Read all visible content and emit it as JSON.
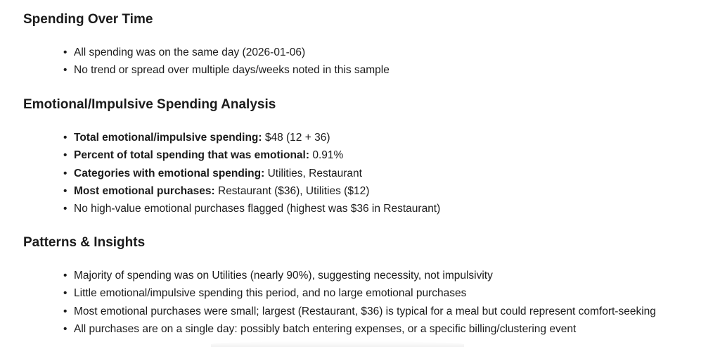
{
  "sections": [
    {
      "heading": "Spending Over Time",
      "items": [
        {
          "label": "",
          "text": "All spending was on the same day (2026-01-06)"
        },
        {
          "label": "",
          "text": "No trend or spread over multiple days/weeks noted in this sample"
        }
      ]
    },
    {
      "heading": "Emotional/Impulsive Spending Analysis",
      "items": [
        {
          "label": "Total emotional/impulsive spending:",
          "text": " $48 (12 + 36)"
        },
        {
          "label": "Percent of total spending that was emotional:",
          "text": " 0.91%"
        },
        {
          "label": "Categories with emotional spending:",
          "text": " Utilities, Restaurant"
        },
        {
          "label": "Most emotional purchases:",
          "text": " Restaurant ($36), Utilities ($12)"
        },
        {
          "label": "",
          "text": "No high-value emotional purchases flagged (highest was $36 in Restaurant)"
        }
      ]
    },
    {
      "heading": "Patterns & Insights",
      "items": [
        {
          "label": "",
          "text": "Majority of spending was on Utilities (nearly 90%), suggesting necessity, not impulsivity"
        },
        {
          "label": "",
          "text": "Little emotional/impulsive spending this period, and no large emotional purchases"
        },
        {
          "label": "",
          "text": "Most emotional purchases were small; largest (Restaurant, $36) is typical for a meal but could represent comfort-seeking"
        },
        {
          "label": "",
          "text": "All purchases are on a single day: possibly batch entering expenses, or a specific billing/clustering event"
        }
      ]
    }
  ]
}
